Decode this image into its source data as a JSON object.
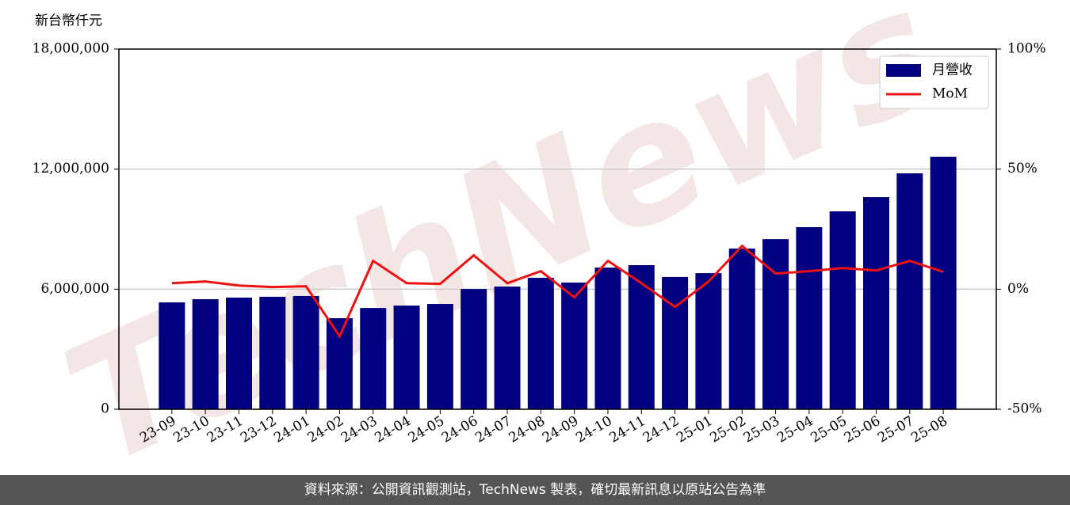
{
  "chart_data": {
    "type": "bar-line",
    "y_label": "新台幣仟元",
    "watermark": "TechNews",
    "categories": [
      "23-09",
      "23-10",
      "23-11",
      "23-12",
      "24-01",
      "24-02",
      "24-03",
      "24-04",
      "24-05",
      "24-06",
      "24-07",
      "24-08",
      "24-09",
      "24-10",
      "24-11",
      "24-12",
      "25-01",
      "25-02",
      "25-03",
      "25-04",
      "25-05",
      "25-06",
      "25-07",
      "25-08"
    ],
    "series": [
      {
        "name": "月營收",
        "color": "#000080",
        "type": "bar",
        "axis": "y",
        "values": [
          5340000,
          5500000,
          5580000,
          5620000,
          5660000,
          4550000,
          5060000,
          5180000,
          5260000,
          6010000,
          6130000,
          6570000,
          6330000,
          7080000,
          7200000,
          6610000,
          6800000,
          8030000,
          8500000,
          9100000,
          9890000,
          10600000,
          11790000,
          12620000
        ]
      },
      {
        "name": "MoM",
        "color": "#ee1111",
        "type": "line",
        "axis": "y2",
        "values": [
          2.5,
          3.2,
          1.5,
          0.9,
          1.2,
          -19.6,
          11.8,
          2.5,
          2.2,
          14.1,
          2.5,
          7.5,
          -3.4,
          11.8,
          2.5,
          -7.4,
          3.2,
          18.0,
          6.5,
          7.5,
          8.8,
          7.8,
          11.8,
          7.2
        ]
      }
    ],
    "ylim": [
      0,
      18000000
    ],
    "yticks": [
      0,
      {
        "value": 6000000,
        "label": "6,000,000"
      },
      {
        "value": 12000000,
        "label": "12,000,000"
      },
      {
        "value": 18000000,
        "label": "18,000,000"
      }
    ],
    "y2lim": [
      -50,
      100
    ],
    "y2ticks": [
      {
        "value": -50,
        "label": "-50%"
      },
      {
        "value": 0,
        "label": "0%"
      },
      {
        "value": 50,
        "label": "50%"
      },
      {
        "value": 100,
        "label": "100%"
      }
    ],
    "grid": true,
    "legend": "upper right",
    "footer": "資料來源：公開資訊觀測站，TechNews 製表，確切最新訊息以原站公告為準"
  }
}
